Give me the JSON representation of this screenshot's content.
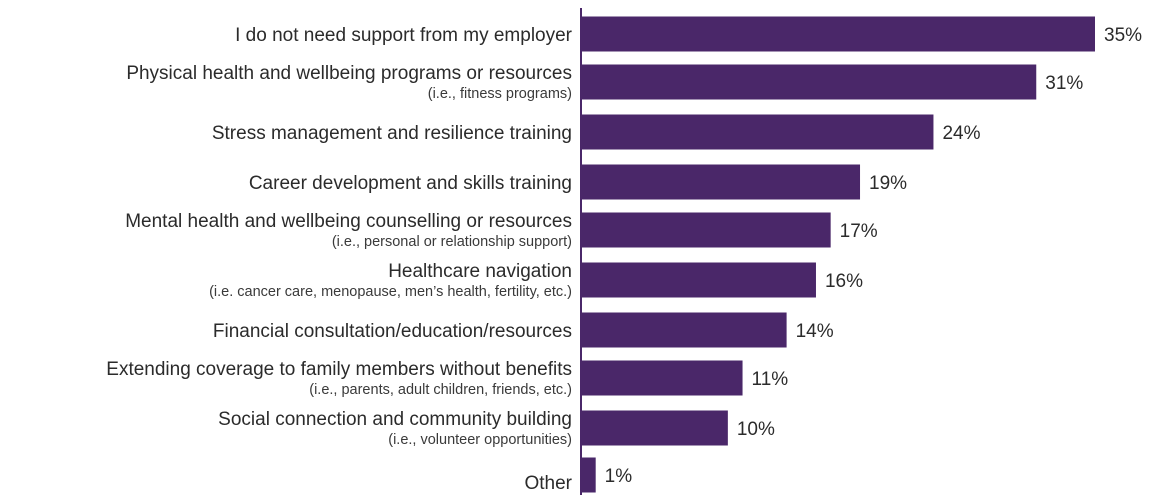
{
  "chart_data": {
    "type": "bar",
    "orientation": "horizontal",
    "bar_color": "#4a2769",
    "axis_color": "#4a2769",
    "value_suffix": "%",
    "categories": [
      "I do not need support from my employer",
      "Physical health and wellbeing programs or resources",
      "Stress management and resilience training",
      "Career development and skills training",
      "Mental health and wellbeing counselling or resources",
      "Healthcare navigation",
      "Financial consultation/education/resources",
      "Extending coverage to family members without benefits",
      "Social connection and community building",
      "Other"
    ],
    "subtitles": [
      "",
      "(i.e., fitness programs)",
      "",
      "",
      "(i.e., personal or relationship support)",
      "(i.e. cancer care, menopause, men’s health, fertility, etc.)",
      "",
      "(i.e., parents, adult children, friends, etc.)",
      "(i.e., volunteer opportunities)",
      ""
    ],
    "values": [
      35,
      31,
      24,
      19,
      17,
      16,
      14,
      11,
      10,
      1
    ],
    "value_labels": [
      "35%",
      "31%",
      "24%",
      "19%",
      "17%",
      "16%",
      "14%",
      "11%",
      "10%",
      "1%"
    ],
    "xlim": [
      0,
      35
    ],
    "grid": false,
    "legend": "none",
    "title": "",
    "xlabel": "",
    "ylabel": ""
  }
}
